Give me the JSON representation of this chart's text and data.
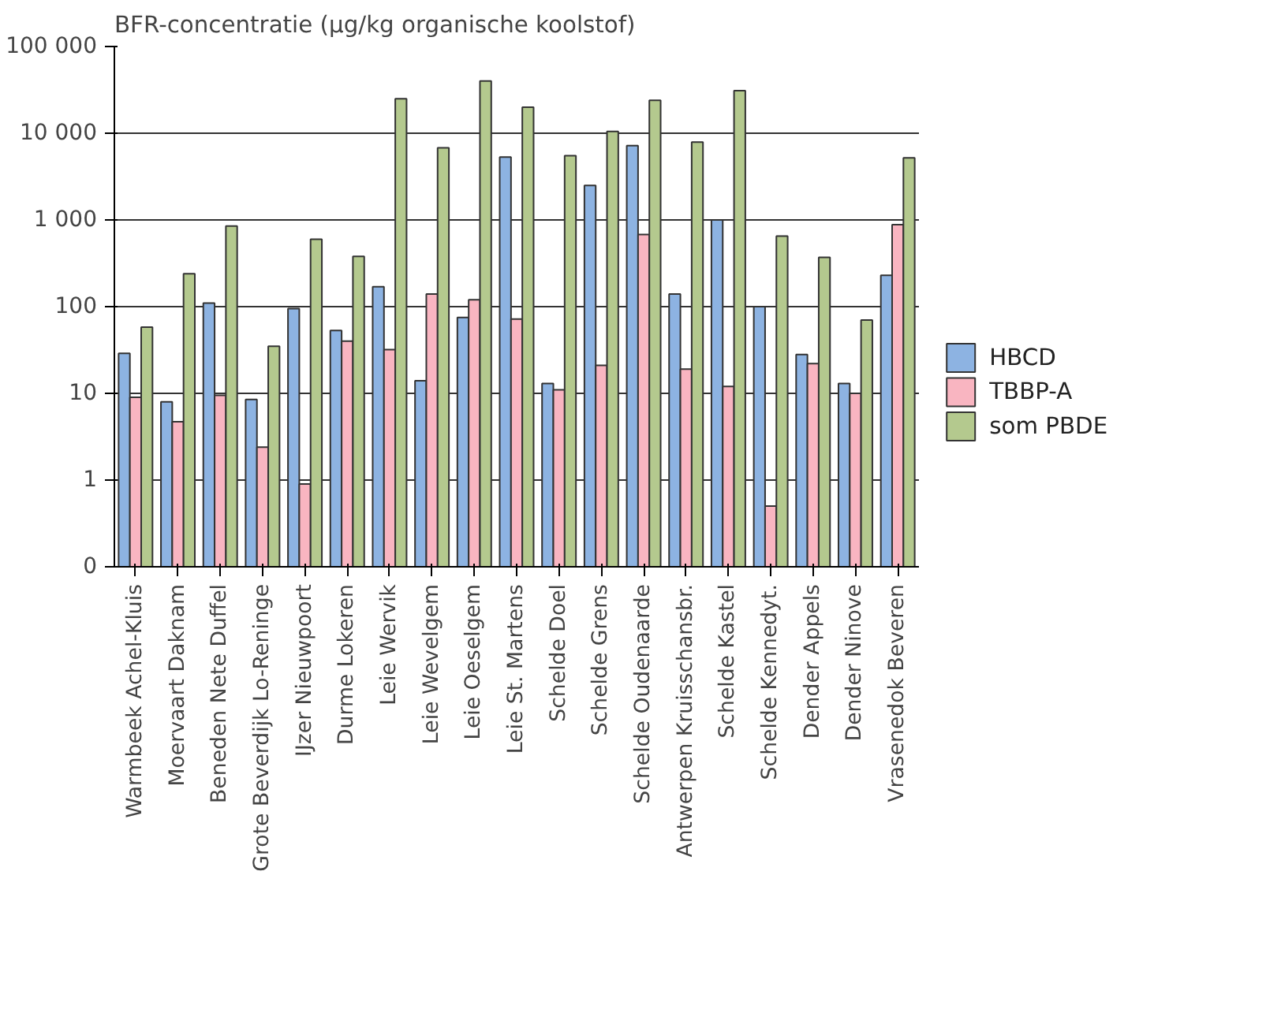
{
  "chart_data": {
    "type": "bar",
    "title": "BFR-concentratie (µg/kg organische koolstof)",
    "categories": [
      "Warmbeek Achel-Kluis",
      "Moervaart Daknam",
      "Beneden Nete Duffel",
      "Grote Beverdijk Lo-Reninge",
      "IJzer Nieuwpoort",
      "Durme Lokeren",
      "Leie Wervik",
      "Leie Wevelgem",
      "Leie Oeselgem",
      "Leie St. Martens",
      "Schelde Doel",
      "Schelde Grens",
      "Schelde Oudenaarde",
      "Antwerpen Kruisschansbr.",
      "Schelde Kastel",
      "Schelde Kennedyt.",
      "Dender Appels",
      "Dender Ninove",
      "Vrasenedok Beveren"
    ],
    "series": [
      {
        "name": "HBCD",
        "color": "#8db3e2",
        "values": [
          29,
          8,
          110,
          8.5,
          95,
          53,
          170,
          14,
          75,
          5300,
          13,
          2500,
          7200,
          140,
          1000,
          100,
          28,
          13,
          230
        ]
      },
      {
        "name": "TBBP-A",
        "color": "#f9b5c1",
        "values": [
          9,
          4.7,
          9.5,
          2.4,
          0.9,
          40,
          32,
          140,
          120,
          72,
          11,
          21,
          680,
          19,
          12,
          0.5,
          22,
          10,
          880
        ]
      },
      {
        "name": "som PBDE",
        "color": "#b4c98e",
        "values": [
          58,
          240,
          850,
          35,
          600,
          380,
          25000,
          6800,
          40000,
          20000,
          5500,
          10500,
          24000,
          7900,
          31000,
          650,
          370,
          70,
          5200
        ]
      }
    ],
    "log": "y",
    "ylim": [
      0.1,
      100000
    ],
    "yticks": [
      {
        "value": 0.1,
        "label": "0"
      },
      1,
      10,
      100,
      {
        "value": 1000,
        "label": "1 000"
      },
      {
        "value": 10000,
        "label": "10 000"
      },
      {
        "value": 100000,
        "label": "100 000"
      }
    ],
    "grid": "y",
    "legend": "right"
  }
}
